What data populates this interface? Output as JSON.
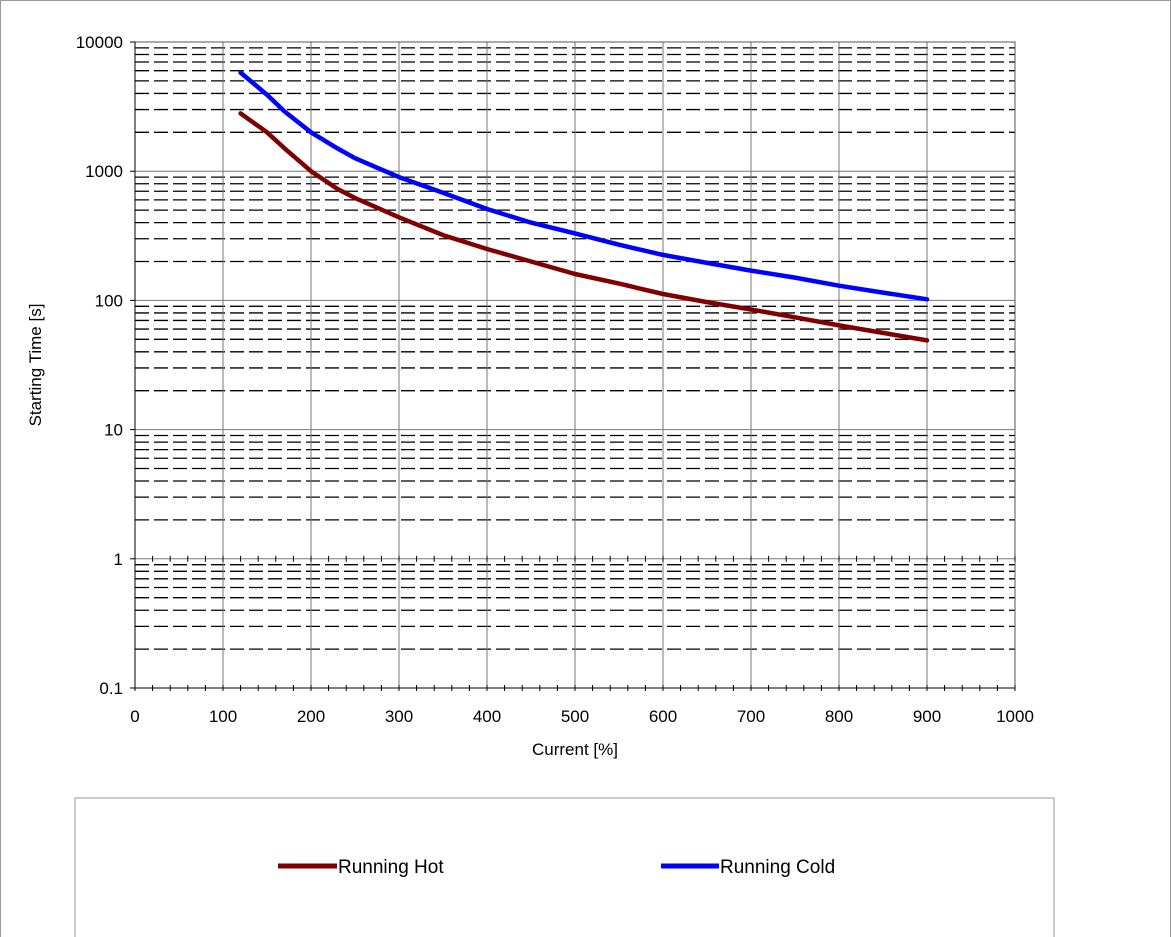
{
  "chart_data": {
    "type": "line",
    "title": "",
    "xlabel": "Current [%]",
    "ylabel": "Starting Time [s]",
    "xlim": [
      0,
      1000
    ],
    "ylim": [
      0.1,
      10000
    ],
    "y_scale": "log",
    "x_ticks": [
      "0",
      "100",
      "200",
      "300",
      "400",
      "500",
      "600",
      "700",
      "800",
      "900",
      "1000"
    ],
    "y_ticks": [
      "0.1",
      "1",
      "10",
      "100",
      "1000",
      "10000"
    ],
    "grid": true,
    "minor_grid_y": "dashed",
    "legend_position": "bottom",
    "series": [
      {
        "name": "Running Hot",
        "color": "#800000",
        "x": [
          120,
          150,
          170,
          200,
          230,
          250,
          300,
          350,
          400,
          450,
          500,
          550,
          600,
          650,
          700,
          750,
          800,
          850,
          900
        ],
        "y": [
          2800,
          2000,
          1500,
          1000,
          730,
          620,
          440,
          320,
          250,
          200,
          160,
          135,
          112,
          97,
          85,
          74,
          64,
          56,
          49
        ]
      },
      {
        "name": "Running Cold",
        "color": "#0000ff",
        "x": [
          120,
          150,
          170,
          200,
          230,
          250,
          300,
          350,
          400,
          450,
          500,
          550,
          600,
          650,
          700,
          750,
          800,
          850,
          900
        ],
        "y": [
          5800,
          3900,
          2900,
          2000,
          1500,
          1260,
          900,
          680,
          510,
          400,
          330,
          270,
          225,
          195,
          170,
          150,
          130,
          115,
          102
        ]
      }
    ]
  }
}
